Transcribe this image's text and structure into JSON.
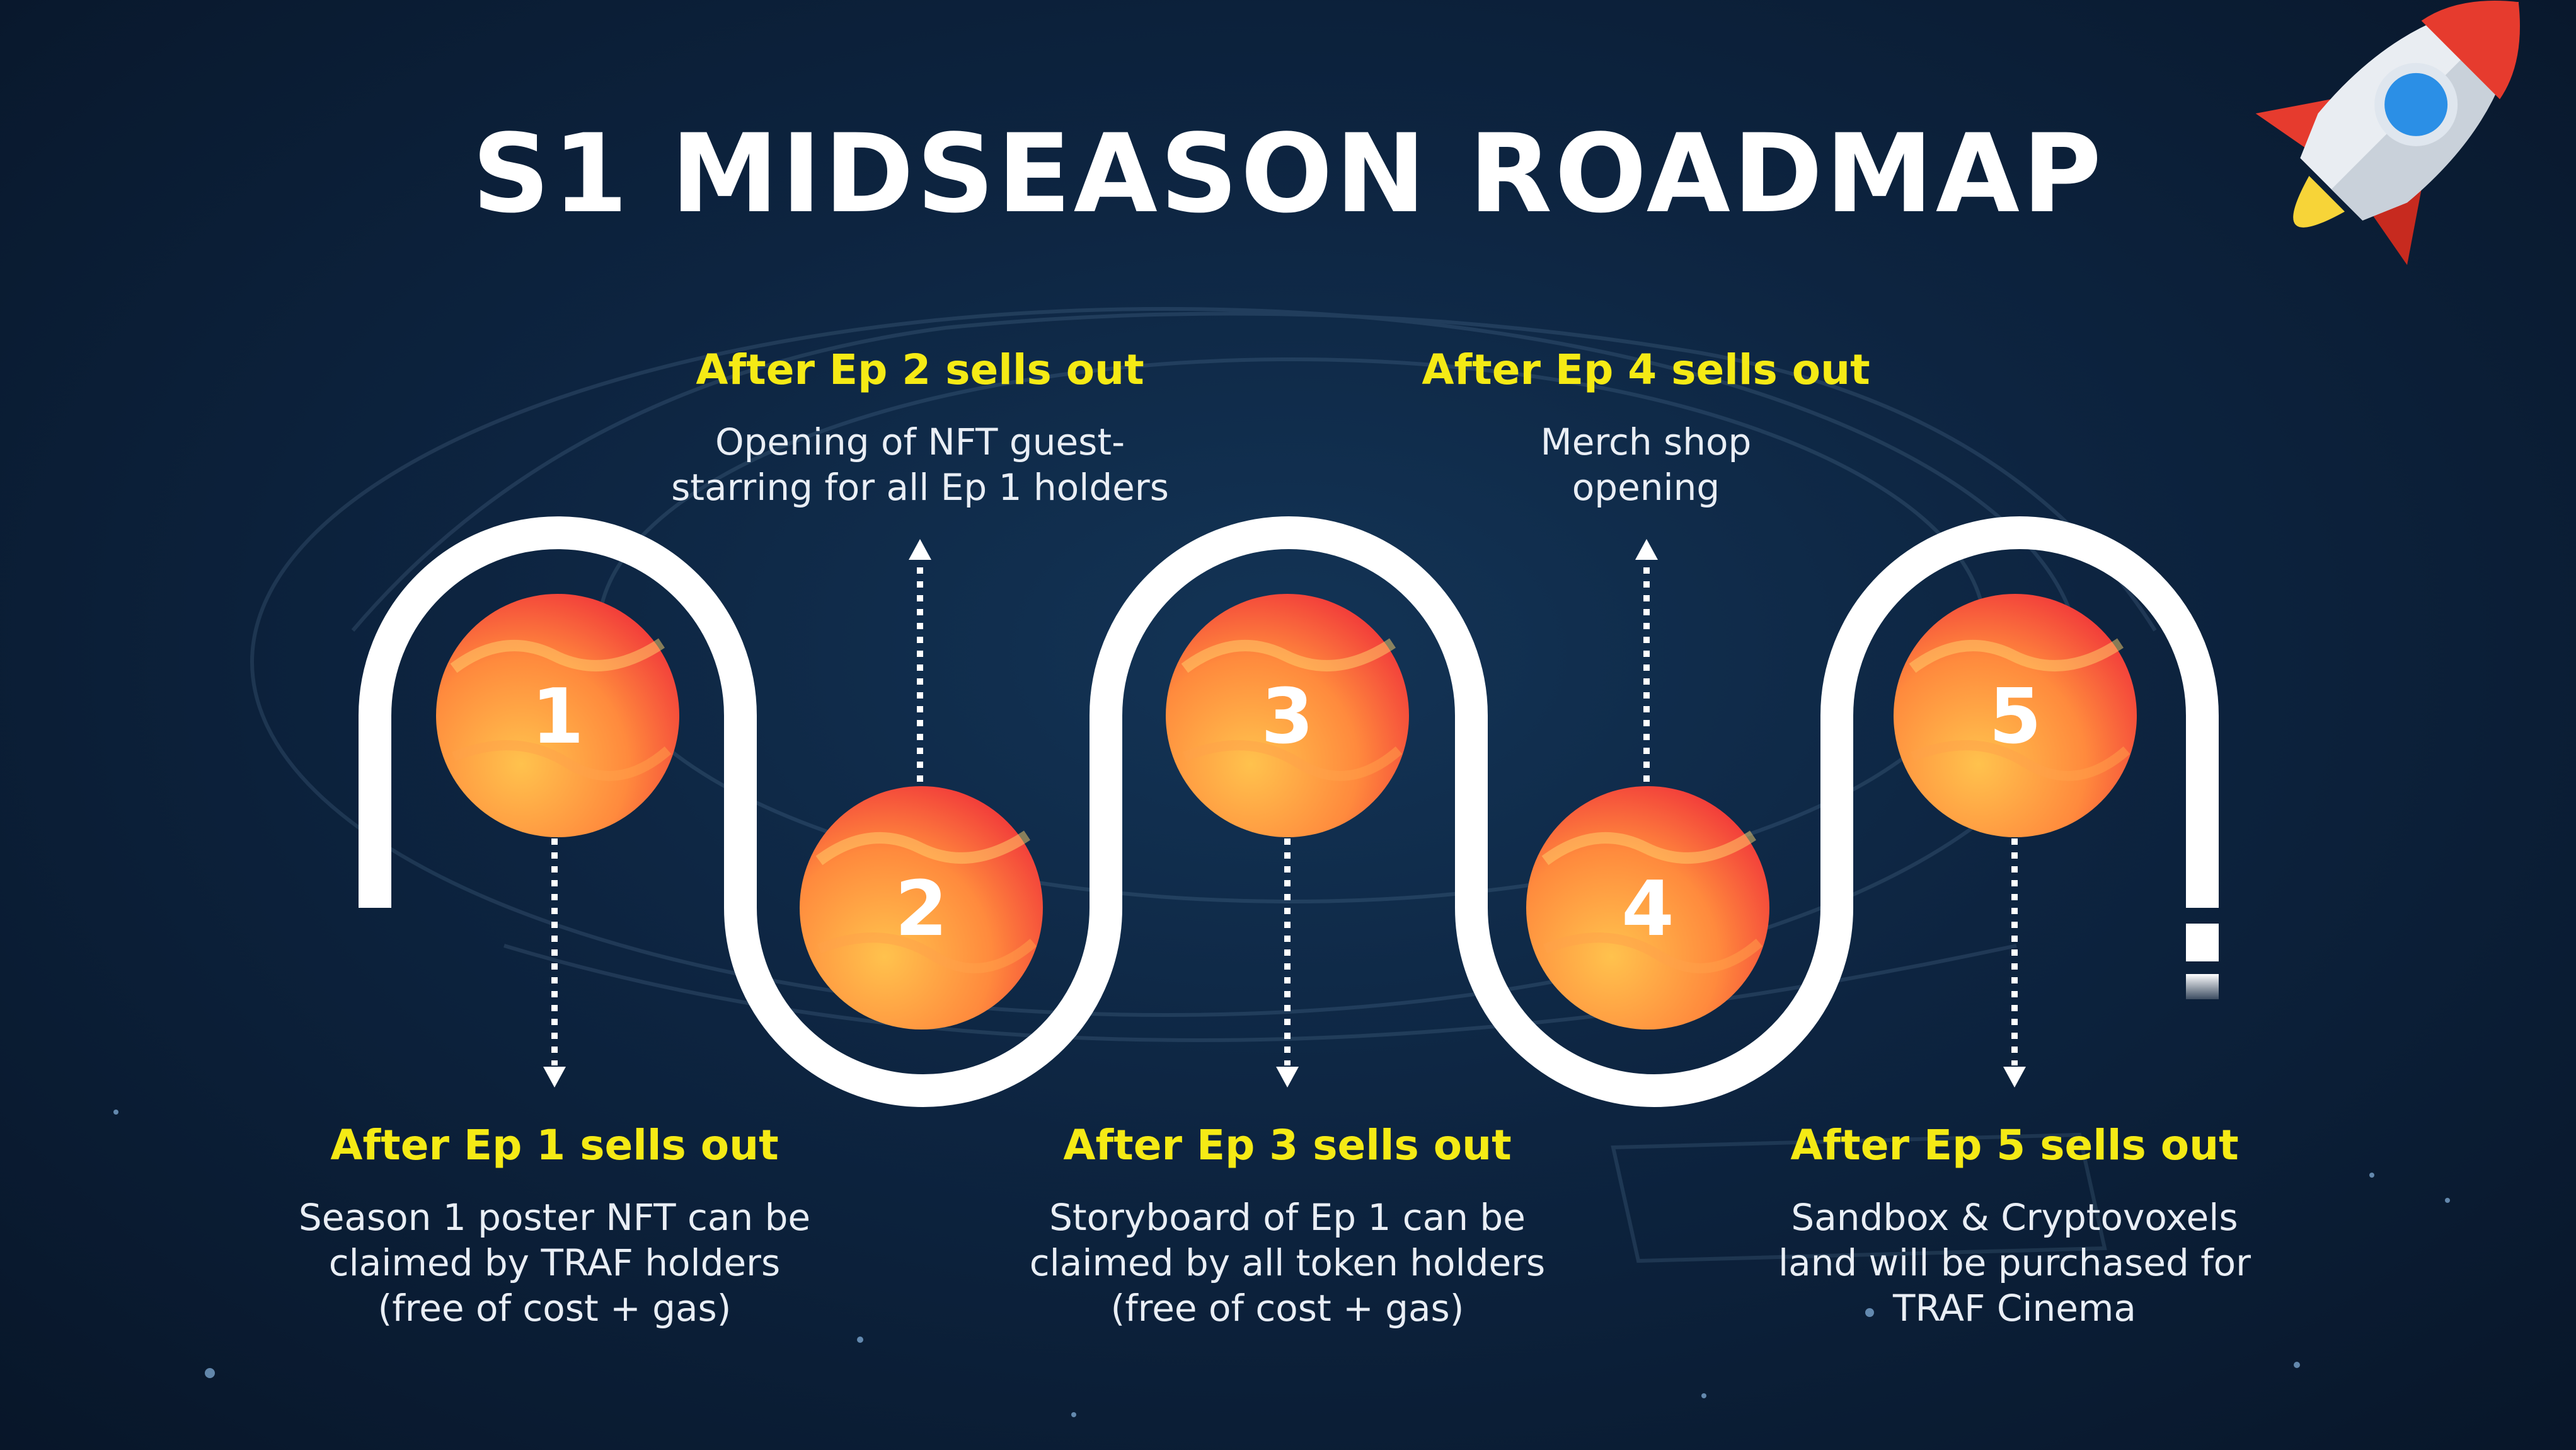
{
  "title": "S1 MIDSEASON ROADMAP",
  "milestones": [
    {
      "number": "1",
      "heading": "After Ep 1 sells out",
      "description": [
        "Season 1 poster NFT can be",
        "claimed by TRAF holders",
        "(free of cost + gas)"
      ]
    },
    {
      "number": "2",
      "heading": "After Ep 2 sells out",
      "description": [
        "Opening of NFT guest-",
        "starring for all Ep 1 holders"
      ]
    },
    {
      "number": "3",
      "heading": "After Ep 3 sells out",
      "description": [
        "Storyboard of Ep 1 can be",
        "claimed by all token holders",
        "(free of cost + gas)"
      ]
    },
    {
      "number": "4",
      "heading": "After Ep 4 sells out",
      "description": [
        "Merch shop",
        "opening"
      ]
    },
    {
      "number": "5",
      "heading": "After Ep 5 sells out",
      "description": [
        "Sandbox & Cryptovoxels",
        "land will be purchased for",
        "TRAF Cinema"
      ]
    }
  ],
  "colors": {
    "background": "#0b1d33",
    "heading": "#f5ea15",
    "text": "#e9eef5",
    "path": "#ffffff",
    "planet_light": "#ffb347",
    "planet_dark": "#f03a3a"
  },
  "icons": [
    "rocket-icon",
    "planet-icon",
    "arrow-up-icon",
    "arrow-down-icon"
  ]
}
